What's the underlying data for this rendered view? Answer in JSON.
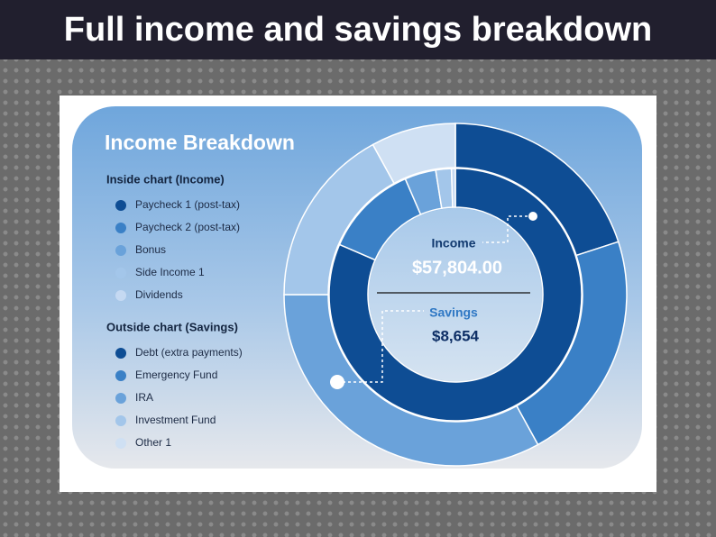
{
  "banner": "Full income and savings breakdown",
  "chart_data": {
    "type": "donut",
    "title": "Income Breakdown",
    "center": {
      "income_label": "Income",
      "income_value": "$57,804.00",
      "savings_label": "Savings",
      "savings_value": "$8,654"
    },
    "series": [
      {
        "name": "Inside chart (Income)",
        "categories": [
          "Paycheck 1 (post-tax)",
          "Paycheck 2 (post-tax)",
          "Bonus",
          "Side Income 1",
          "Dividends"
        ],
        "colors": [
          "#0e4d94",
          "#3a80c6",
          "#6aa2da",
          "#a3c6ea",
          "#c5d9f2"
        ],
        "values": [
          81.5,
          12,
          4,
          2,
          0.5
        ]
      },
      {
        "name": "Outside chart (Savings)",
        "categories": [
          "Debt (extra payments)",
          "Emergency Fund",
          "IRA",
          "Investment Fund",
          "Other 1"
        ],
        "colors": [
          "#0e4d94",
          "#3a80c6",
          "#6aa2da",
          "#a3c6ea",
          "#cfe0f3"
        ],
        "values": [
          20,
          22,
          33,
          17,
          8
        ]
      }
    ]
  }
}
